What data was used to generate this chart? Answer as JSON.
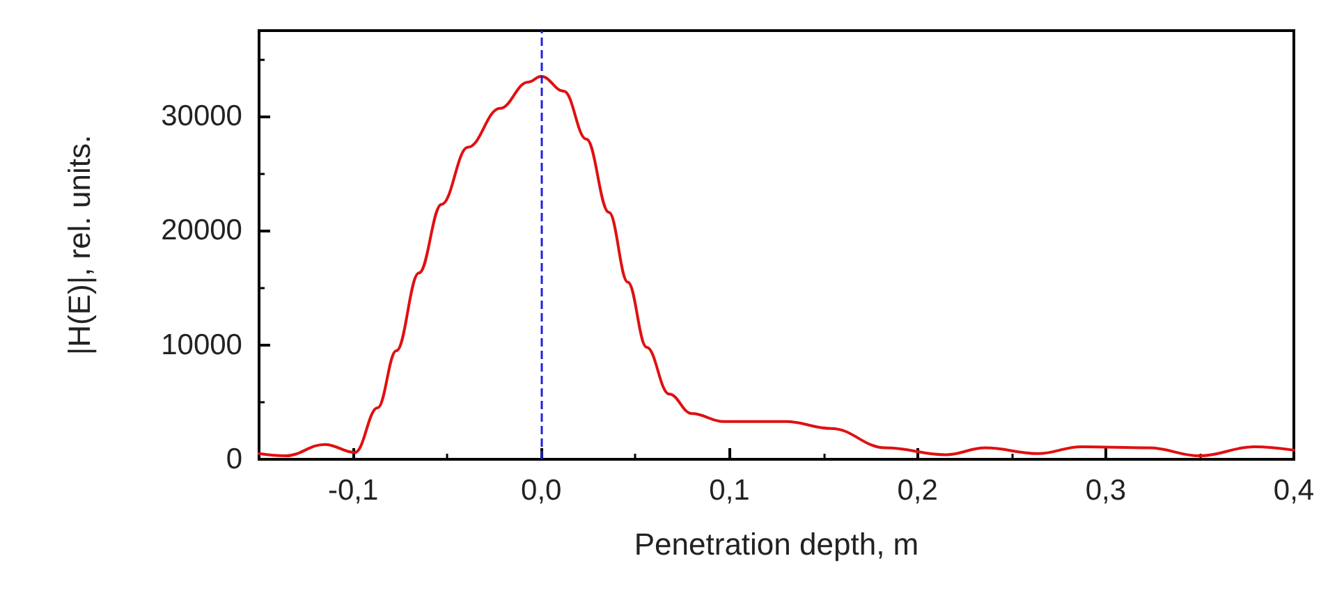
{
  "chart_data": {
    "type": "line",
    "xlabel": "Penetration depth, m",
    "ylabel": "|H(E)|, rel. units.",
    "xlim": [
      -0.15,
      0.4
    ],
    "ylim": [
      0,
      37500
    ],
    "xticks": [
      {
        "value": -0.1,
        "label": "-0,1"
      },
      {
        "value": 0,
        "label": "0,0"
      },
      {
        "value": 0.1,
        "label": "0,1"
      },
      {
        "value": 0.2,
        "label": "0,2"
      },
      {
        "value": 0.3,
        "label": "0,3"
      },
      {
        "value": 0.4,
        "label": "0,4"
      }
    ],
    "yticks": [
      0,
      10000,
      20000,
      30000
    ],
    "grid": false,
    "marker": "none",
    "line_style": "solid",
    "ref_lines": [
      {
        "axis": "x",
        "value": 0,
        "color": "#2020dd",
        "line_style": "dashed"
      }
    ],
    "series": [
      {
        "color": "#e01010",
        "x": [
          -0.15,
          -0.136,
          -0.115,
          -0.099,
          -0.087,
          -0.077,
          -0.065,
          -0.053,
          -0.039,
          -0.022,
          -0.007,
          0,
          0.012,
          0.024,
          0.036,
          0.046,
          0.056,
          0.068,
          0.08,
          0.097,
          0.111,
          0.13,
          0.154,
          0.183,
          0.215,
          0.236,
          0.264,
          0.287,
          0.323,
          0.35,
          0.379,
          0.4
        ],
        "values": [
          500,
          300,
          1300,
          600,
          4500,
          9500,
          16300,
          22300,
          27300,
          30700,
          33000,
          33500,
          32200,
          28000,
          21600,
          15500,
          9800,
          5700,
          4000,
          3300,
          3300,
          3300,
          2700,
          1000,
          400,
          1000,
          500,
          1100,
          1000,
          300,
          1100,
          800
        ]
      }
    ]
  }
}
